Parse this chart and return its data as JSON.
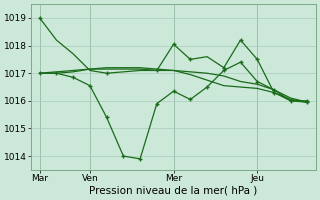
{
  "bg_color": "#cce8d8",
  "grid_color": "#aaccbb",
  "line_color": "#1a6b1a",
  "title": "Pression niveau de la mer( hPa )",
  "ylim": [
    1013.5,
    1019.5
  ],
  "yticks": [
    1014,
    1015,
    1016,
    1017,
    1018,
    1019
  ],
  "xtick_labels": [
    "Mar",
    "Ven",
    "Mer",
    "Jeu"
  ],
  "xtick_positions": [
    0,
    3,
    8,
    13
  ],
  "n_points": 17,
  "series": [
    [
      1019.0,
      1018.2,
      1017.7,
      1017.1,
      1017.0,
      1017.05,
      1017.1,
      1017.1,
      1018.05,
      1017.5,
      1017.6,
      1017.2,
      1018.2,
      1017.5,
      1016.3,
      1016.0,
      1016.0
    ],
    [
      1017.0,
      1017.0,
      1016.85,
      1016.55,
      1015.4,
      1014.0,
      1013.9,
      1015.9,
      1016.35,
      1016.05,
      1016.5,
      1017.1,
      1017.4,
      1016.7,
      1016.4,
      1016.0,
      1015.95
    ],
    [
      1017.0,
      1017.05,
      1017.1,
      1017.15,
      1017.15,
      1017.15,
      1017.15,
      1017.1,
      1017.1,
      1017.05,
      1017.0,
      1016.9,
      1016.7,
      1016.6,
      1016.4,
      1016.1,
      1015.95
    ],
    [
      1017.0,
      1017.0,
      1017.05,
      1017.15,
      1017.2,
      1017.2,
      1017.2,
      1017.15,
      1017.1,
      1016.95,
      1016.75,
      1016.55,
      1016.5,
      1016.45,
      1016.3,
      1016.05,
      1015.95
    ]
  ],
  "markers_s0_x": [
    0,
    4,
    7,
    8,
    9,
    11,
    12,
    13,
    14,
    16
  ],
  "markers_s0_y": [
    1019.0,
    1017.0,
    1017.1,
    1018.05,
    1017.5,
    1017.2,
    1018.2,
    1017.5,
    1016.3,
    1016.0
  ],
  "markers_s1_x": [
    0,
    1,
    2,
    3,
    4,
    5,
    6,
    7,
    8,
    9,
    10,
    11,
    12,
    13,
    14,
    15,
    16
  ],
  "markers_s1_y": [
    1017.0,
    1017.0,
    1016.85,
    1016.55,
    1015.4,
    1014.0,
    1013.9,
    1015.9,
    1016.35,
    1016.05,
    1016.5,
    1017.1,
    1017.4,
    1016.7,
    1016.4,
    1016.0,
    1015.95
  ],
  "title_fontsize": 7.5,
  "tick_fontsize": 6.5
}
